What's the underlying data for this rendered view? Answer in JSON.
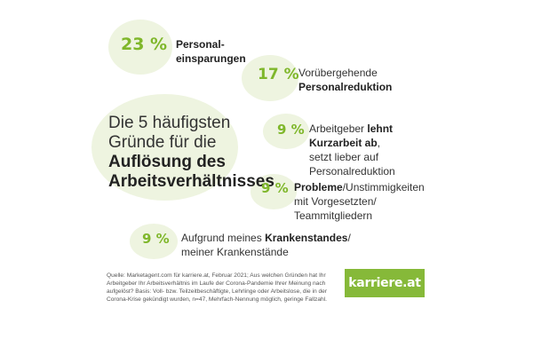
{
  "chart_data": {
    "type": "table",
    "title_line1": "Die 5 häufigsten",
    "title_line2": "Gründe für die",
    "title_line3": "Auflösung des",
    "title_line4": "Arbeitsverhältnisses",
    "items": [
      {
        "percent": "23 %",
        "value": 23,
        "bold1": "Personal-",
        "bold2": "einsparungen"
      },
      {
        "percent": "17 %",
        "value": 17,
        "line1": "Vorübergehende",
        "bold2": "Personalreduktion"
      },
      {
        "percent": "9 %",
        "value": 9,
        "pre1": "Arbeitgeber ",
        "bold1": "lehnt",
        "bold2": "Kurzarbeit ab",
        "post2": ",",
        "line3": "setzt lieber auf",
        "line4": "Personalreduktion"
      },
      {
        "percent": "9 %",
        "value": 9,
        "bold1": "Probleme",
        "post1": "/Unstimmigkeiten",
        "line2": "mit Vorgesetzten/",
        "line3": "Teammitgliedern"
      },
      {
        "percent": "9 %",
        "value": 9,
        "pre1": "Aufgrund meines ",
        "bold1": "Krankenstandes",
        "post1": "/",
        "line2": "meiner Krankenstände"
      }
    ]
  },
  "source": {
    "line1": "Quelle: Marketagent.com für karriere.at, Februar 2021; Aus welchen Gründen hat Ihr",
    "line2": "Arbeitgeber Ihr Arbeitsverhältnis im Laufe der Corona-Pandemie Ihrer Meinung nach",
    "line3": "aufgelöst? Basis: Voll- bzw. Teilzeitbeschäftigte, Lehrlinge oder Arbeitslose, die in der",
    "line4": "Corona-Krise gekündigt wurden, n=47, Mehrfach-Nennung möglich, geringe Fallzahl."
  },
  "logo": {
    "text": "karriere.at"
  },
  "colors": {
    "accent": "#7fb72b",
    "blob": "#eef4e0",
    "logo_bg": "#86b939"
  }
}
